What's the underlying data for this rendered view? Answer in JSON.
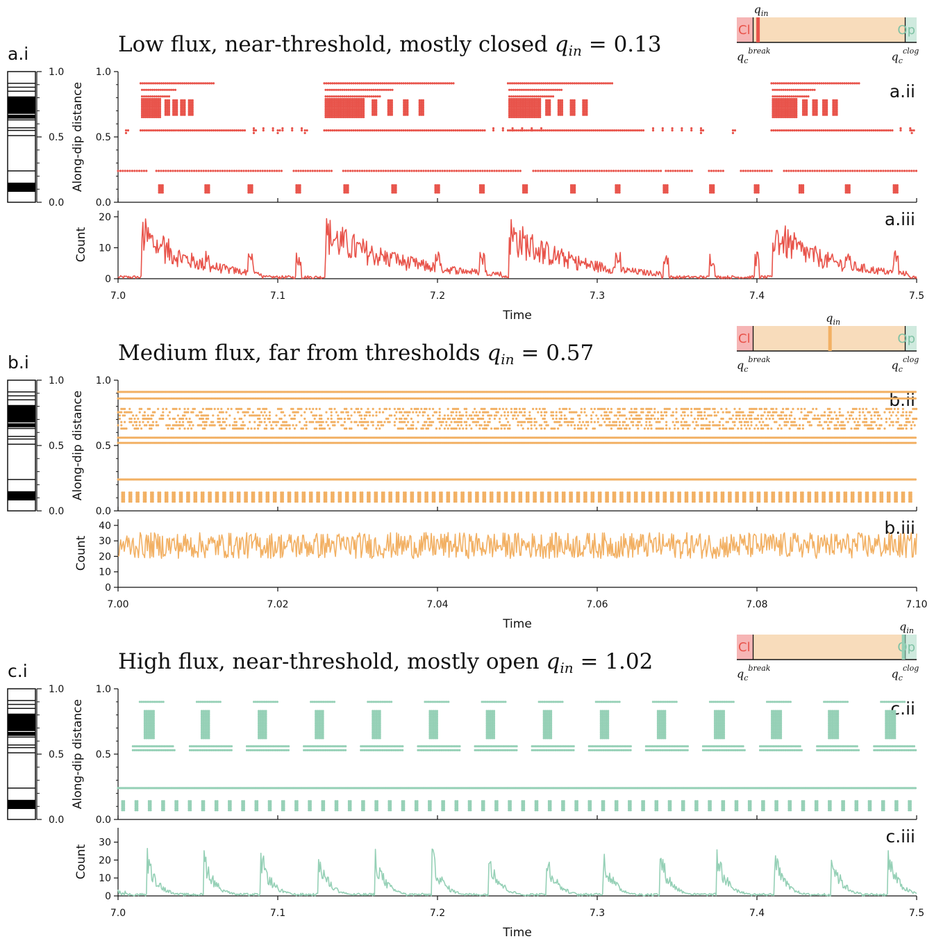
{
  "colors": {
    "low": "#e8534a",
    "medium": "#f2b063",
    "high": "#95d0b6",
    "closed_zone": "#f6b5b5",
    "mid_zone": "#f8dcbb",
    "open_zone": "#cfeade"
  },
  "chart_data": [
    {
      "id": "a",
      "type": "scatter",
      "title_text": "Low flux, near-threshold, mostly closed ",
      "q_symbol": "q",
      "q_sub": "in",
      "q_eq": " = 0.13",
      "q_in": 0.13,
      "panel_labels": {
        "layers": "a.i",
        "scatter": "a.ii",
        "count": "a.iii"
      },
      "xlim": [
        7.0,
        7.5
      ],
      "x_ticks": [
        "7.0",
        "7.1",
        "7.2",
        "7.3",
        "7.4",
        "7.5"
      ],
      "xlabel": "Time",
      "ylabel": "Along-dip distance",
      "ylim": [
        0.0,
        1.0
      ],
      "y_ticks": [
        "0.0",
        "0.5",
        "1.0"
      ],
      "count_ylabel": "Count",
      "count_ylim": [
        0,
        22
      ],
      "count_ticks": [
        "0",
        "10",
        "20"
      ],
      "pulses": [
        7.015,
        7.13,
        7.245,
        7.41
      ],
      "count_peak_value": 21,
      "count_baseline": 1,
      "layer_positions": [
        0.09,
        0.1,
        0.11,
        0.12,
        0.13,
        0.24,
        0.51,
        0.55,
        0.57,
        0.63,
        0.66,
        0.68,
        0.7,
        0.72,
        0.74,
        0.76,
        0.78,
        0.8,
        0.85,
        0.88,
        0.91
      ],
      "scatter_rows": [
        0.24,
        0.52,
        0.56,
        0.63,
        0.66,
        0.69,
        0.72,
        0.75,
        0.78,
        0.81,
        0.87,
        0.9
      ]
    },
    {
      "id": "b",
      "type": "scatter",
      "title_text": "Medium flux, far from thresholds ",
      "q_symbol": "q",
      "q_sub": "in",
      "q_eq": " = 0.57",
      "q_in": 0.57,
      "panel_labels": {
        "layers": "b.i",
        "scatter": "b.ii",
        "count": "b.iii"
      },
      "xlim": [
        7.0,
        7.1
      ],
      "x_ticks": [
        "7.00",
        "7.02",
        "7.04",
        "7.06",
        "7.08",
        "7.10"
      ],
      "xlabel": "Time",
      "ylabel": "Along-dip distance",
      "ylim": [
        0.0,
        1.0
      ],
      "y_ticks": [
        "0.0",
        "0.5",
        "1.0"
      ],
      "count_ylabel": "Count",
      "count_ylim": [
        0,
        44
      ],
      "count_ticks": [
        "0",
        "10",
        "20",
        "30",
        "40"
      ],
      "count_mean": 27,
      "count_amplitude": 6,
      "layer_positions": [
        0.09,
        0.1,
        0.11,
        0.12,
        0.13,
        0.24,
        0.51,
        0.55,
        0.57,
        0.63,
        0.66,
        0.68,
        0.7,
        0.72,
        0.74,
        0.76,
        0.78,
        0.8,
        0.85,
        0.88,
        0.91
      ],
      "scatter_rows": [
        0.52,
        0.56,
        0.65,
        0.91,
        0.86,
        0.24
      ]
    },
    {
      "id": "c",
      "type": "scatter",
      "title_text": "High flux, near-threshold, mostly open ",
      "q_symbol": "q",
      "q_sub": "in",
      "q_eq": " = 1.02",
      "q_in": 1.02,
      "panel_labels": {
        "layers": "c.i",
        "scatter": "c.ii",
        "count": "c.iii"
      },
      "xlim": [
        7.0,
        7.5
      ],
      "x_ticks": [
        "7.0",
        "7.1",
        "7.2",
        "7.3",
        "7.4",
        "7.5"
      ],
      "xlabel": "Time",
      "ylabel": "Along-dip distance",
      "ylim": [
        0.0,
        1.0
      ],
      "y_ticks": [
        "0.0",
        "0.5",
        "1.0"
      ],
      "count_ylabel": "Count",
      "count_ylim": [
        0,
        38
      ],
      "count_ticks": [
        "0",
        "10",
        "20",
        "30"
      ],
      "count_peak_value": 29,
      "period": 0.0357,
      "first_pulse": 7.018,
      "layer_positions": [
        0.09,
        0.1,
        0.11,
        0.12,
        0.13,
        0.24,
        0.51,
        0.55,
        0.57,
        0.63,
        0.66,
        0.68,
        0.7,
        0.72,
        0.74,
        0.76,
        0.78,
        0.8,
        0.85,
        0.88,
        0.91
      ],
      "scatter_rows": [
        0.24,
        0.53,
        0.56,
        0.9
      ]
    }
  ],
  "threshold_bar": {
    "closed_label": "Cl",
    "open_label": "Op",
    "q_symbol": "q",
    "q_sub": "in",
    "break_sup": "break",
    "clog_sup": "clog",
    "c_sub": "c",
    "range": [
      0.0,
      1.1
    ],
    "q_break": 0.1,
    "q_clog": 1.03
  }
}
